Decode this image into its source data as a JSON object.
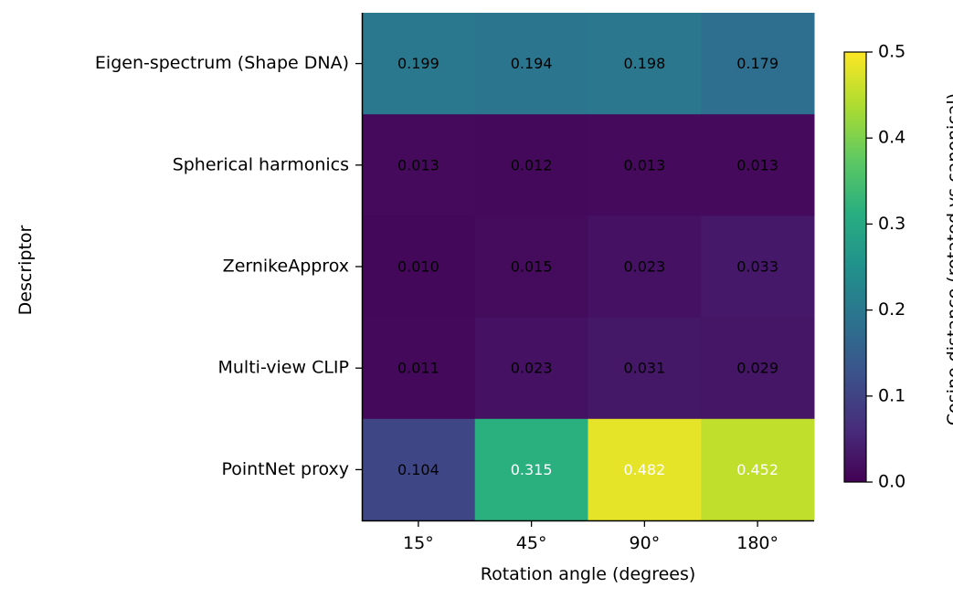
{
  "chart_data": {
    "type": "heatmap",
    "xlabel": "Rotation angle (degrees)",
    "ylabel": "Descriptor",
    "x_categories": [
      "15°",
      "45°",
      "90°",
      "180°"
    ],
    "y_categories": [
      "Eigen-spectrum (Shape DNA)",
      "Spherical harmonics",
      "ZernikeApprox",
      "Multi-view CLIP",
      "PointNet proxy"
    ],
    "values": [
      [
        0.199,
        0.194,
        0.198,
        0.179
      ],
      [
        0.013,
        0.012,
        0.013,
        0.013
      ],
      [
        0.01,
        0.015,
        0.023,
        0.033
      ],
      [
        0.011,
        0.023,
        0.031,
        0.029
      ],
      [
        0.104,
        0.315,
        0.482,
        0.452
      ]
    ],
    "value_labels": [
      [
        "0.199",
        "0.194",
        "0.198",
        "0.179"
      ],
      [
        "0.013",
        "0.012",
        "0.013",
        "0.013"
      ],
      [
        "0.010",
        "0.015",
        "0.023",
        "0.033"
      ],
      [
        "0.011",
        "0.023",
        "0.031",
        "0.029"
      ],
      [
        "0.104",
        "0.315",
        "0.482",
        "0.452"
      ]
    ],
    "colormap": "viridis",
    "colorbar": {
      "label": "Cosine distance (rotated vs canonical)",
      "range": [
        0.0,
        0.5
      ],
      "ticks": [
        "0.0",
        "0.1",
        "0.2",
        "0.3",
        "0.4",
        "0.5"
      ]
    }
  }
}
